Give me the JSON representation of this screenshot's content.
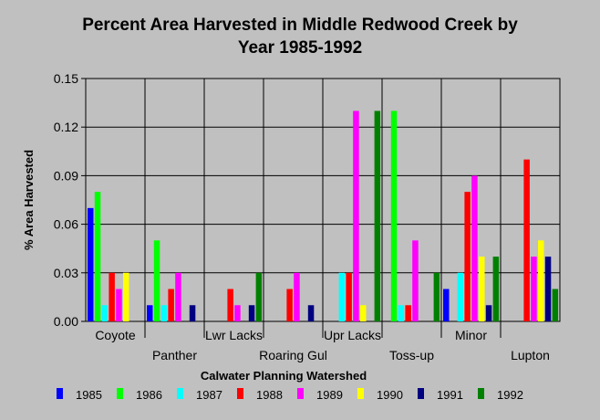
{
  "chart_data": {
    "type": "bar",
    "title_lines": [
      "Percent Area Harvested in Middle Redwood Creek by",
      "Year 1985-1992"
    ],
    "xlabel": "Calwater Planning Watershed",
    "ylabel": "% Area Harvested",
    "ylim": [
      0,
      0.15
    ],
    "yticks": [
      "0.00",
      "0.03",
      "0.06",
      "0.09",
      "0.12",
      "0.15"
    ],
    "categories": [
      "Coyote",
      "Panther",
      "Lwr Lacks",
      "Roaring Gul",
      "Upr Lacks",
      "Toss-up",
      "Minor",
      "Lupton"
    ],
    "legend_position": "bottom",
    "series": [
      {
        "name": "1985",
        "color": "#0000ff",
        "values": [
          0.07,
          0.01,
          0,
          0,
          0,
          0,
          0.02,
          0
        ]
      },
      {
        "name": "1986",
        "color": "#00ff00",
        "values": [
          0.08,
          0.05,
          0,
          0,
          0,
          0.13,
          0,
          0
        ]
      },
      {
        "name": "1987",
        "color": "#00ffff",
        "values": [
          0.01,
          0.01,
          0,
          0,
          0.03,
          0.01,
          0.03,
          0
        ]
      },
      {
        "name": "1988",
        "color": "#ff0000",
        "values": [
          0.03,
          0.02,
          0.02,
          0.02,
          0.03,
          0.01,
          0.08,
          0.1
        ]
      },
      {
        "name": "1989",
        "color": "#ff00ff",
        "values": [
          0.02,
          0.03,
          0.01,
          0.03,
          0.13,
          0.05,
          0.09,
          0.04
        ]
      },
      {
        "name": "1990",
        "color": "#ffff00",
        "values": [
          0.03,
          0,
          0,
          0,
          0.01,
          0,
          0.04,
          0.05
        ]
      },
      {
        "name": "1991",
        "color": "#000080",
        "values": [
          0,
          0.01,
          0.01,
          0.01,
          0,
          0,
          0.01,
          0.04
        ]
      },
      {
        "name": "1992",
        "color": "#008000",
        "values": [
          0,
          0,
          0.03,
          0,
          0.13,
          0.03,
          0.04,
          0.02
        ]
      }
    ]
  }
}
